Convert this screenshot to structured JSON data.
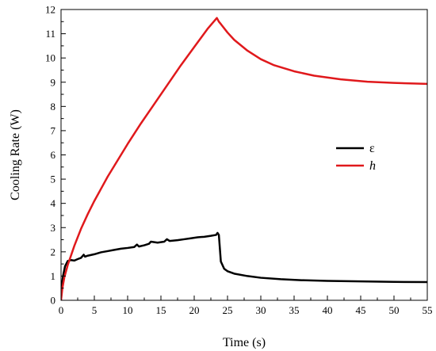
{
  "chart_data": {
    "type": "line",
    "title": "",
    "xlabel": "Time (s)",
    "ylabel": "Cooling Rate (W)",
    "xlim": [
      0,
      55
    ],
    "ylim": [
      0,
      12
    ],
    "xticks": [
      "0",
      "5",
      "10",
      "15",
      "20",
      "25",
      "30",
      "35",
      "40",
      "45",
      "50",
      "55"
    ],
    "yticks": [
      "0",
      "1",
      "2",
      "3",
      "4",
      "5",
      "6",
      "7",
      "8",
      "9",
      "10",
      "11",
      "12"
    ],
    "grid": false,
    "legend": "right",
    "series": [
      {
        "name": "ε",
        "italic": false,
        "color": "#000000",
        "x": [
          0,
          0.3,
          0.6,
          1.0,
          1.5,
          2.0,
          2.5,
          3.0,
          3.4,
          3.6,
          4.0,
          5.0,
          6.0,
          7.0,
          8.0,
          9.0,
          10.0,
          11.0,
          11.4,
          11.7,
          12.5,
          13.2,
          13.5,
          14.5,
          15.5,
          15.9,
          16.3,
          17.5,
          18.5,
          19.5,
          20.5,
          21.5,
          22.5,
          23.3,
          23.5,
          23.7,
          24.0,
          24.5,
          25.0,
          26.0,
          28.0,
          30.0,
          33.0,
          36.0,
          40.0,
          45.0,
          50.0,
          55.0
        ],
        "values": [
          0.3,
          1.0,
          1.4,
          1.62,
          1.66,
          1.64,
          1.7,
          1.75,
          1.88,
          1.8,
          1.84,
          1.9,
          1.98,
          2.03,
          2.08,
          2.13,
          2.16,
          2.2,
          2.3,
          2.22,
          2.27,
          2.33,
          2.42,
          2.38,
          2.42,
          2.52,
          2.45,
          2.48,
          2.52,
          2.56,
          2.6,
          2.62,
          2.66,
          2.7,
          2.78,
          2.7,
          1.6,
          1.3,
          1.2,
          1.1,
          1.0,
          0.93,
          0.87,
          0.83,
          0.8,
          0.78,
          0.76,
          0.75
        ]
      },
      {
        "name": "h",
        "italic": true,
        "color": "#e0191c",
        "x": [
          0,
          0.2,
          0.5,
          1.0,
          1.5,
          2.0,
          3.0,
          4.0,
          5.0,
          6.0,
          7.0,
          8.0,
          10.0,
          12.0,
          14.0,
          16.0,
          18.0,
          20.0,
          22.0,
          23.4,
          23.7,
          24.0,
          25.0,
          26.0,
          28.0,
          30.0,
          32.0,
          35.0,
          38.0,
          42.0,
          46.0,
          50.0,
          55.0
        ],
        "values": [
          0,
          0.5,
          0.95,
          1.45,
          1.85,
          2.25,
          2.95,
          3.55,
          4.1,
          4.6,
          5.1,
          5.55,
          6.45,
          7.3,
          8.1,
          8.9,
          9.7,
          10.45,
          11.2,
          11.65,
          11.5,
          11.4,
          11.05,
          10.75,
          10.3,
          9.95,
          9.7,
          9.45,
          9.27,
          9.12,
          9.02,
          8.97,
          8.93
        ]
      }
    ]
  }
}
